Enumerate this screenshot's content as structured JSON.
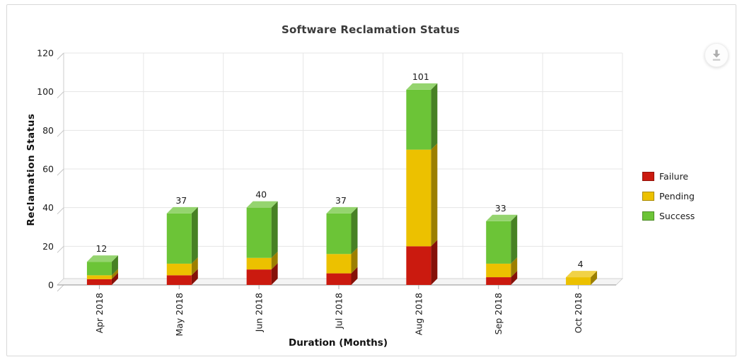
{
  "chart_data": {
    "type": "bar",
    "stacked": true,
    "effect_3d": true,
    "title": "Software Reclamation Status",
    "xlabel": "Duration (Months)",
    "ylabel": "Reclamation Status",
    "categories": [
      "Apr 2018",
      "May 2018",
      "Jun 2018",
      "Jul 2018",
      "Aug 2018",
      "Sep 2018",
      "Oct 2018"
    ],
    "series": [
      {
        "name": "Failure",
        "color": "#CB1A0F",
        "values": [
          3,
          5,
          8,
          6,
          20,
          4,
          0
        ]
      },
      {
        "name": "Pending",
        "color": "#ECC100",
        "values": [
          2,
          6,
          6,
          10,
          50,
          7,
          4
        ]
      },
      {
        "name": "Success",
        "color": "#6CC437",
        "values": [
          7,
          26,
          26,
          21,
          31,
          22,
          0
        ]
      }
    ],
    "totals": [
      12,
      37,
      40,
      37,
      101,
      33,
      4
    ],
    "ylim": [
      0,
      120
    ],
    "y_ticks": [
      0,
      20,
      40,
      60,
      80,
      100,
      120
    ],
    "grid": true,
    "legend_position": "right"
  },
  "toolbar": {
    "export_icon": "download-icon"
  }
}
